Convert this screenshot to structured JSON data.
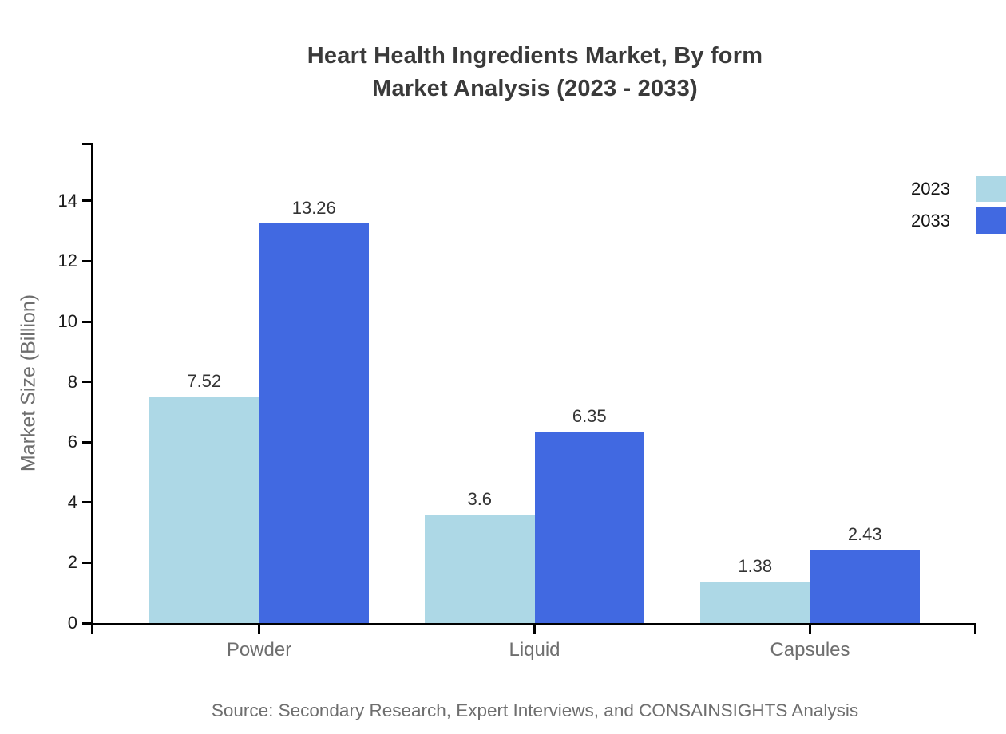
{
  "chart_data": {
    "type": "bar",
    "title": "Heart Health Ingredients Market, By form Market Analysis (2023 - 2033)",
    "title_lines": [
      "Heart Health Ingredients Market, By form",
      "Market Analysis (2023 - 2033)"
    ],
    "ylabel": "Market Size (Billion)",
    "xlabel": "",
    "categories": [
      "Powder",
      "Liquid",
      "Capsules"
    ],
    "series": [
      {
        "name": "2023",
        "color": "#ADD8E6",
        "values": [
          7.52,
          3.6,
          1.38
        ]
      },
      {
        "name": "2033",
        "color": "#4169E1",
        "values": [
          13.26,
          6.35,
          2.43
        ]
      }
    ],
    "value_labels": [
      [
        "7.52",
        "3.6",
        "1.38"
      ],
      [
        "13.26",
        "6.35",
        "2.43"
      ]
    ],
    "yticks": [
      0,
      2,
      4,
      6,
      8,
      10,
      12,
      14
    ],
    "ylim": [
      0,
      15.9
    ],
    "grid": false,
    "legend_position": "top-right",
    "source": "Source: Secondary Research, Expert Interviews, and CONSAINSIGHTS Analysis",
    "colors": {
      "series_2023": "#ADD8E6",
      "series_2033": "#4169E1",
      "axis": "#000000",
      "title_text": "#3A3A3A",
      "value_text": "#333333",
      "tick_text": "#1B1B1B",
      "muted_text": "#6E6E6E",
      "background": "#FFFFFF"
    }
  }
}
